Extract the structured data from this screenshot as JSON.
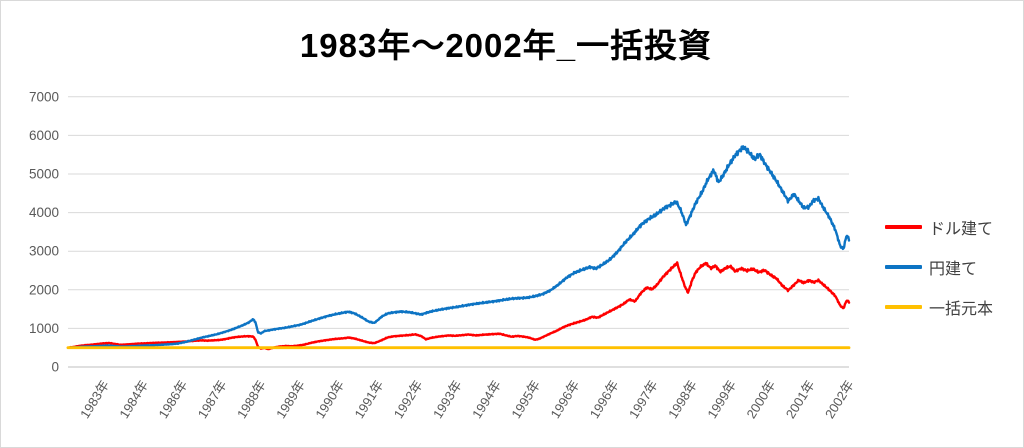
{
  "style": {
    "background": "#FFFFFF",
    "border_color": "#D9D9D9",
    "grid_color": "#D9D9D9",
    "axis_line_color": "#BFBFBF",
    "tick_label_color": "#595959",
    "legend_text_color": "#404040",
    "title_color": "#000000"
  },
  "chart_data": {
    "type": "line",
    "title": "1983年～2002年_一括投資",
    "xlabel": "",
    "ylabel": "",
    "ylim": [
      0,
      7000
    ],
    "y_ticks": [
      0,
      1000,
      2000,
      3000,
      4000,
      5000,
      6000,
      7000
    ],
    "x_tick_labels": [
      "1983年",
      "1984年",
      "1986年",
      "1987年",
      "1988年",
      "1989年",
      "1990年",
      "1991年",
      "1992年",
      "1993年",
      "1994年",
      "1995年",
      "1996年",
      "1996年",
      "1997年",
      "1998年",
      "1999年",
      "2000年",
      "2001年",
      "2002年"
    ],
    "x_domain_years": [
      1983.0,
      2002.9
    ],
    "grid": "horizontal",
    "legend_position": "right",
    "series": [
      {
        "name": "ドル建て",
        "color": "#FF0000",
        "points": [
          [
            1983.0,
            500
          ],
          [
            1983.15,
            520
          ],
          [
            1983.3,
            548
          ],
          [
            1983.45,
            566
          ],
          [
            1983.6,
            578
          ],
          [
            1983.75,
            595
          ],
          [
            1983.9,
            612
          ],
          [
            1984.05,
            622
          ],
          [
            1984.2,
            595
          ],
          [
            1984.35,
            575
          ],
          [
            1984.5,
            585
          ],
          [
            1984.65,
            595
          ],
          [
            1984.8,
            606
          ],
          [
            1985.0,
            615
          ],
          [
            1985.2,
            625
          ],
          [
            1985.4,
            632
          ],
          [
            1985.6,
            640
          ],
          [
            1985.8,
            650
          ],
          [
            1986.0,
            660
          ],
          [
            1986.2,
            678
          ],
          [
            1986.4,
            690
          ],
          [
            1986.55,
            682
          ],
          [
            1986.7,
            690
          ],
          [
            1986.85,
            700
          ],
          [
            1987.0,
            722
          ],
          [
            1987.15,
            755
          ],
          [
            1987.3,
            778
          ],
          [
            1987.45,
            792
          ],
          [
            1987.6,
            798
          ],
          [
            1987.72,
            788
          ],
          [
            1987.78,
            700
          ],
          [
            1987.84,
            520
          ],
          [
            1987.92,
            475
          ],
          [
            1988.0,
            495
          ],
          [
            1988.1,
            462
          ],
          [
            1988.25,
            505
          ],
          [
            1988.4,
            532
          ],
          [
            1988.55,
            545
          ],
          [
            1988.7,
            538
          ],
          [
            1988.85,
            552
          ],
          [
            1989.0,
            575
          ],
          [
            1989.2,
            628
          ],
          [
            1989.4,
            668
          ],
          [
            1989.6,
            698
          ],
          [
            1989.8,
            726
          ],
          [
            1990.0,
            742
          ],
          [
            1990.15,
            762
          ],
          [
            1990.3,
            738
          ],
          [
            1990.5,
            680
          ],
          [
            1990.65,
            635
          ],
          [
            1990.8,
            618
          ],
          [
            1990.9,
            655
          ],
          [
            1991.0,
            698
          ],
          [
            1991.15,
            768
          ],
          [
            1991.3,
            795
          ],
          [
            1991.5,
            812
          ],
          [
            1991.7,
            828
          ],
          [
            1991.85,
            845
          ],
          [
            1992.0,
            800
          ],
          [
            1992.12,
            718
          ],
          [
            1992.25,
            755
          ],
          [
            1992.4,
            782
          ],
          [
            1992.55,
            800
          ],
          [
            1992.7,
            818
          ],
          [
            1992.85,
            808
          ],
          [
            1993.0,
            820
          ],
          [
            1993.2,
            842
          ],
          [
            1993.4,
            818
          ],
          [
            1993.6,
            838
          ],
          [
            1993.8,
            850
          ],
          [
            1994.0,
            862
          ],
          [
            1994.15,
            822
          ],
          [
            1994.3,
            785
          ],
          [
            1994.45,
            805
          ],
          [
            1994.6,
            788
          ],
          [
            1994.75,
            762
          ],
          [
            1994.9,
            706
          ],
          [
            1995.0,
            728
          ],
          [
            1995.15,
            800
          ],
          [
            1995.3,
            872
          ],
          [
            1995.45,
            938
          ],
          [
            1995.6,
            1020
          ],
          [
            1995.75,
            1085
          ],
          [
            1995.9,
            1135
          ],
          [
            1996.05,
            1180
          ],
          [
            1996.2,
            1228
          ],
          [
            1996.35,
            1300
          ],
          [
            1996.5,
            1278
          ],
          [
            1996.65,
            1360
          ],
          [
            1996.8,
            1440
          ],
          [
            1997.0,
            1545
          ],
          [
            1997.15,
            1630
          ],
          [
            1997.3,
            1748
          ],
          [
            1997.45,
            1702
          ],
          [
            1997.6,
            1918
          ],
          [
            1997.75,
            2060
          ],
          [
            1997.88,
            2010
          ],
          [
            1998.0,
            2120
          ],
          [
            1998.15,
            2320
          ],
          [
            1998.3,
            2480
          ],
          [
            1998.42,
            2600
          ],
          [
            1998.52,
            2690
          ],
          [
            1998.62,
            2380
          ],
          [
            1998.72,
            2080
          ],
          [
            1998.8,
            1925
          ],
          [
            1998.9,
            2240
          ],
          [
            1999.0,
            2462
          ],
          [
            1999.12,
            2600
          ],
          [
            1999.25,
            2688
          ],
          [
            1999.38,
            2560
          ],
          [
            1999.5,
            2620
          ],
          [
            1999.62,
            2465
          ],
          [
            1999.75,
            2560
          ],
          [
            1999.88,
            2610
          ],
          [
            2000.0,
            2480
          ],
          [
            2000.15,
            2552
          ],
          [
            2000.3,
            2495
          ],
          [
            2000.45,
            2540
          ],
          [
            2000.6,
            2455
          ],
          [
            2000.75,
            2510
          ],
          [
            2000.9,
            2385
          ],
          [
            2001.05,
            2295
          ],
          [
            2001.2,
            2110
          ],
          [
            2001.35,
            1985
          ],
          [
            2001.5,
            2130
          ],
          [
            2001.62,
            2248
          ],
          [
            2001.75,
            2180
          ],
          [
            2001.88,
            2242
          ],
          [
            2002.0,
            2195
          ],
          [
            2002.12,
            2245
          ],
          [
            2002.25,
            2130
          ],
          [
            2002.4,
            1995
          ],
          [
            2002.55,
            1840
          ],
          [
            2002.68,
            1585
          ],
          [
            2002.76,
            1520
          ],
          [
            2002.84,
            1728
          ],
          [
            2002.9,
            1680
          ]
        ]
      },
      {
        "name": "円建て",
        "color": "#0D74C4",
        "points": [
          [
            1983.0,
            500
          ],
          [
            1983.15,
            505
          ],
          [
            1983.3,
            520
          ],
          [
            1983.45,
            528
          ],
          [
            1983.6,
            532
          ],
          [
            1983.75,
            540
          ],
          [
            1983.9,
            550
          ],
          [
            1984.05,
            555
          ],
          [
            1984.2,
            540
          ],
          [
            1984.35,
            528
          ],
          [
            1984.5,
            532
          ],
          [
            1984.65,
            540
          ],
          [
            1984.8,
            548
          ],
          [
            1985.0,
            558
          ],
          [
            1985.2,
            565
          ],
          [
            1985.4,
            578
          ],
          [
            1985.6,
            590
          ],
          [
            1985.8,
            608
          ],
          [
            1986.0,
            650
          ],
          [
            1986.2,
            705
          ],
          [
            1986.4,
            760
          ],
          [
            1986.6,
            805
          ],
          [
            1986.8,
            850
          ],
          [
            1987.0,
            910
          ],
          [
            1987.15,
            960
          ],
          [
            1987.3,
            1020
          ],
          [
            1987.45,
            1080
          ],
          [
            1987.6,
            1150
          ],
          [
            1987.72,
            1240
          ],
          [
            1987.78,
            1150
          ],
          [
            1987.84,
            900
          ],
          [
            1987.92,
            870
          ],
          [
            1988.0,
            930
          ],
          [
            1988.15,
            955
          ],
          [
            1988.3,
            985
          ],
          [
            1988.5,
            1010
          ],
          [
            1988.7,
            1050
          ],
          [
            1988.9,
            1090
          ],
          [
            1989.0,
            1120
          ],
          [
            1989.2,
            1190
          ],
          [
            1989.4,
            1255
          ],
          [
            1989.6,
            1315
          ],
          [
            1989.8,
            1365
          ],
          [
            1990.0,
            1405
          ],
          [
            1990.15,
            1430
          ],
          [
            1990.3,
            1390
          ],
          [
            1990.5,
            1280
          ],
          [
            1990.65,
            1180
          ],
          [
            1990.8,
            1140
          ],
          [
            1990.9,
            1220
          ],
          [
            1991.0,
            1310
          ],
          [
            1991.15,
            1390
          ],
          [
            1991.3,
            1415
          ],
          [
            1991.5,
            1435
          ],
          [
            1991.7,
            1420
          ],
          [
            1991.85,
            1390
          ],
          [
            1992.0,
            1360
          ],
          [
            1992.15,
            1410
          ],
          [
            1992.3,
            1450
          ],
          [
            1992.5,
            1490
          ],
          [
            1992.7,
            1525
          ],
          [
            1992.9,
            1555
          ],
          [
            1993.1,
            1590
          ],
          [
            1993.3,
            1625
          ],
          [
            1993.5,
            1655
          ],
          [
            1993.7,
            1680
          ],
          [
            1993.9,
            1705
          ],
          [
            1994.1,
            1740
          ],
          [
            1994.3,
            1770
          ],
          [
            1994.5,
            1785
          ],
          [
            1994.7,
            1795
          ],
          [
            1994.9,
            1835
          ],
          [
            1995.1,
            1890
          ],
          [
            1995.3,
            1990
          ],
          [
            1995.5,
            2140
          ],
          [
            1995.7,
            2310
          ],
          [
            1995.9,
            2440
          ],
          [
            1996.1,
            2520
          ],
          [
            1996.3,
            2590
          ],
          [
            1996.45,
            2550
          ],
          [
            1996.6,
            2640
          ],
          [
            1996.8,
            2780
          ],
          [
            1997.0,
            2980
          ],
          [
            1997.2,
            3230
          ],
          [
            1997.4,
            3440
          ],
          [
            1997.6,
            3680
          ],
          [
            1997.8,
            3840
          ],
          [
            1998.0,
            3960
          ],
          [
            1998.2,
            4120
          ],
          [
            1998.35,
            4200
          ],
          [
            1998.5,
            4280
          ],
          [
            1998.62,
            4050
          ],
          [
            1998.75,
            3680
          ],
          [
            1998.88,
            3980
          ],
          [
            1999.0,
            4260
          ],
          [
            1999.15,
            4520
          ],
          [
            1999.3,
            4850
          ],
          [
            1999.45,
            5100
          ],
          [
            1999.58,
            4780
          ],
          [
            1999.7,
            4980
          ],
          [
            1999.85,
            5250
          ],
          [
            2000.0,
            5480
          ],
          [
            2000.12,
            5620
          ],
          [
            2000.22,
            5700
          ],
          [
            2000.35,
            5560
          ],
          [
            2000.5,
            5380
          ],
          [
            2000.62,
            5520
          ],
          [
            2000.75,
            5280
          ],
          [
            2000.9,
            5050
          ],
          [
            2001.05,
            4820
          ],
          [
            2001.2,
            4560
          ],
          [
            2001.35,
            4300
          ],
          [
            2001.5,
            4480
          ],
          [
            2001.62,
            4300
          ],
          [
            2001.75,
            4120
          ],
          [
            2001.88,
            4150
          ],
          [
            2002.0,
            4320
          ],
          [
            2002.12,
            4360
          ],
          [
            2002.25,
            4120
          ],
          [
            2002.4,
            3880
          ],
          [
            2002.55,
            3560
          ],
          [
            2002.68,
            3120
          ],
          [
            2002.76,
            3060
          ],
          [
            2002.84,
            3420
          ],
          [
            2002.9,
            3300
          ]
        ]
      },
      {
        "name": "一括元本",
        "color": "#FFC000",
        "points": [
          [
            1983.0,
            500
          ],
          [
            2002.9,
            500
          ]
        ]
      }
    ]
  }
}
